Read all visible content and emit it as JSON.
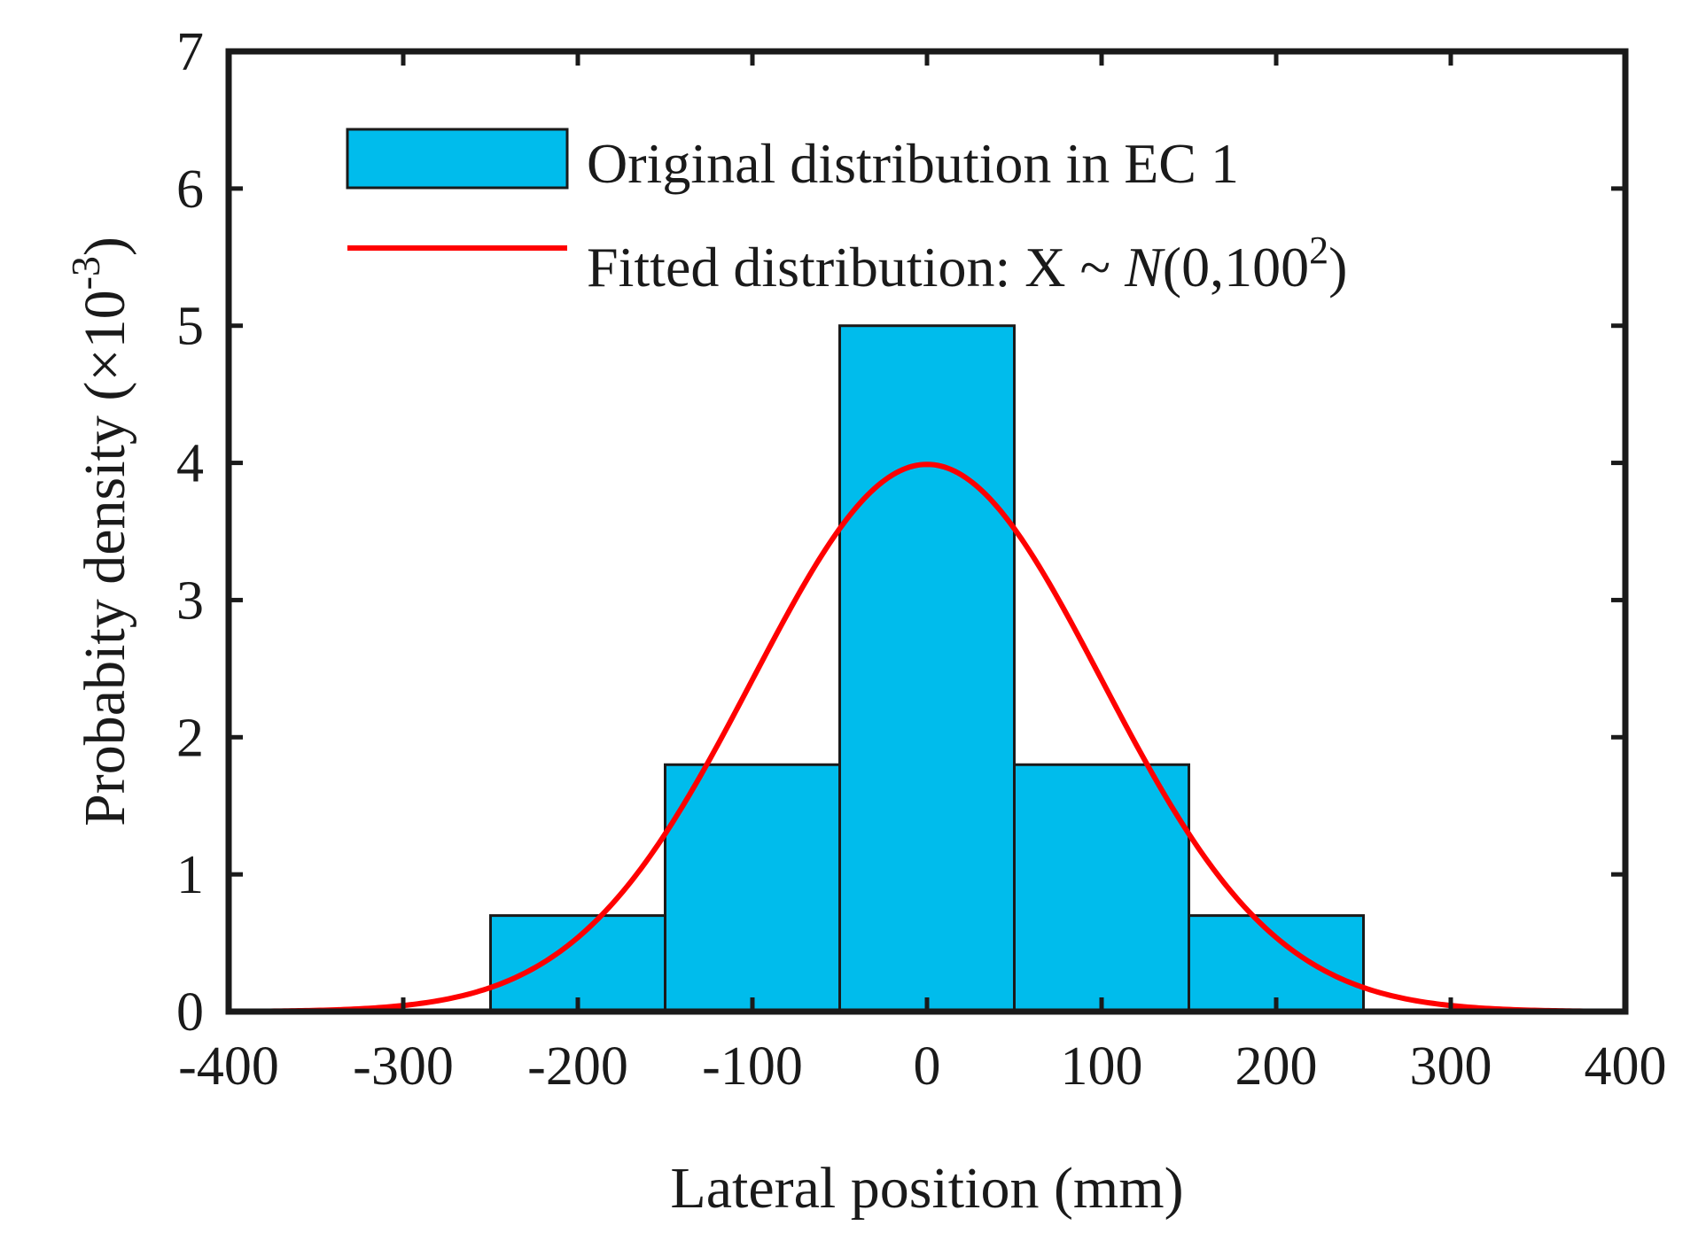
{
  "chart_data": {
    "type": "bar",
    "title": "",
    "xlabel": "Lateral position (mm)",
    "ylabel": {
      "main": "Probabity density (×10",
      "exp": "-3",
      "close": ")"
    },
    "xlim": [
      -400,
      400
    ],
    "ylim": [
      0,
      7
    ],
    "xticks": [
      -400,
      -300,
      -200,
      -100,
      0,
      100,
      200,
      300,
      400
    ],
    "xtick_labels": [
      "-400",
      "-300",
      "-200",
      "-100",
      "0",
      "100",
      "200",
      "300",
      "400"
    ],
    "yticks": [
      0,
      1,
      2,
      3,
      4,
      5,
      6,
      7
    ],
    "ytick_labels": [
      "0",
      "1",
      "2",
      "3",
      "4",
      "5",
      "6",
      "7"
    ],
    "grid": false,
    "legend_position": "top-center",
    "histogram": {
      "name": "Original distribution in EC 1",
      "color": "#00bcec",
      "edgecolor": "#1a1a1a",
      "bins": [
        {
          "start": -250,
          "end": -150,
          "value": 0.7
        },
        {
          "start": -150,
          "end": -50,
          "value": 1.8
        },
        {
          "start": -50,
          "end": 50,
          "value": 5.0
        },
        {
          "start": 50,
          "end": 150,
          "value": 1.8
        },
        {
          "start": 150,
          "end": 250,
          "value": 0.7
        }
      ]
    },
    "fit": {
      "name_prefix": "Fitted distribution: X ~ ",
      "name_dist": "N",
      "name_args": "(0,100",
      "name_exp": "2",
      "name_close": ")",
      "color": "#ff0000",
      "mean": 0,
      "sd": 100,
      "scale": 1000
    }
  }
}
